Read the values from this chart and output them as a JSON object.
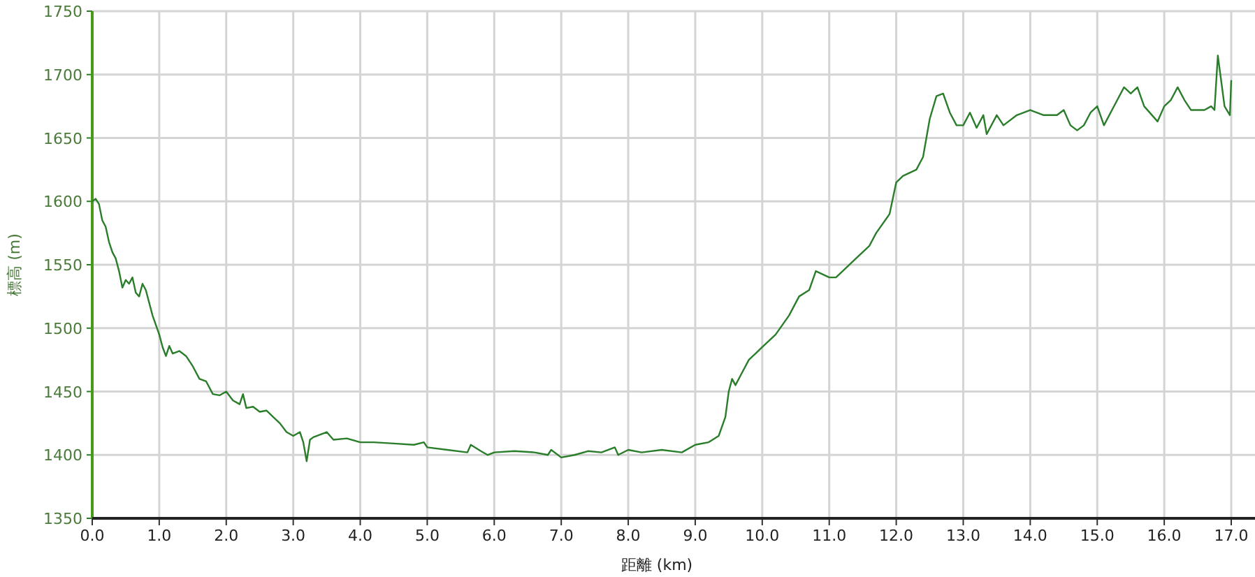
{
  "chart_data": {
    "type": "line",
    "xlabel": "距離 (km)",
    "ylabel": "標高 (m)",
    "color": "#2a7d2a",
    "grid": true,
    "xlim": [
      0,
      17.5
    ],
    "ylim": [
      1350,
      1750
    ],
    "xticks": [
      {
        "value": 0,
        "label": "0.0"
      },
      {
        "value": 1,
        "label": "1.0"
      },
      {
        "value": 2,
        "label": "2.0"
      },
      {
        "value": 3,
        "label": "3.0"
      },
      {
        "value": 4,
        "label": "4.0"
      },
      {
        "value": 5,
        "label": "5.0"
      },
      {
        "value": 6,
        "label": "6.0"
      },
      {
        "value": 7,
        "label": "7.0"
      },
      {
        "value": 8,
        "label": "8.0"
      },
      {
        "value": 9,
        "label": "9.0"
      },
      {
        "value": 10,
        "label": "10.0"
      },
      {
        "value": 11,
        "label": "11.0"
      },
      {
        "value": 12,
        "label": "12.0"
      },
      {
        "value": 13,
        "label": "13.0"
      },
      {
        "value": 14,
        "label": "14.0"
      },
      {
        "value": 15,
        "label": "15.0"
      },
      {
        "value": 16,
        "label": "16.0"
      },
      {
        "value": 17,
        "label": "17.0"
      }
    ],
    "yticks": [
      1350,
      1400,
      1450,
      1500,
      1550,
      1600,
      1650,
      1700,
      1750
    ],
    "x": [
      0,
      0.05,
      0.1,
      0.15,
      0.2,
      0.25,
      0.3,
      0.35,
      0.4,
      0.45,
      0.5,
      0.55,
      0.6,
      0.65,
      0.7,
      0.75,
      0.8,
      0.9,
      1.0,
      1.05,
      1.1,
      1.15,
      1.2,
      1.3,
      1.4,
      1.5,
      1.6,
      1.7,
      1.8,
      1.9,
      2.0,
      2.1,
      2.2,
      2.25,
      2.3,
      2.4,
      2.5,
      2.6,
      2.7,
      2.8,
      2.9,
      3.0,
      3.1,
      3.15,
      3.2,
      3.25,
      3.3,
      3.5,
      3.6,
      3.8,
      4.0,
      4.2,
      4.5,
      4.8,
      4.95,
      5.0,
      5.3,
      5.6,
      5.65,
      5.8,
      5.9,
      6.0,
      6.3,
      6.6,
      6.8,
      6.85,
      7.0,
      7.2,
      7.4,
      7.6,
      7.8,
      7.85,
      8.0,
      8.2,
      8.5,
      8.8,
      9.0,
      9.2,
      9.35,
      9.45,
      9.5,
      9.55,
      9.6,
      9.7,
      9.8,
      9.9,
      10.0,
      10.2,
      10.4,
      10.55,
      10.7,
      10.8,
      11.0,
      11.1,
      11.2,
      11.4,
      11.6,
      11.7,
      11.9,
      12.0,
      12.1,
      12.3,
      12.4,
      12.5,
      12.6,
      12.7,
      12.8,
      12.9,
      13.0,
      13.1,
      13.2,
      13.3,
      13.35,
      13.5,
      13.6,
      13.8,
      14.0,
      14.2,
      14.4,
      14.5,
      14.6,
      14.7,
      14.8,
      14.9,
      15.0,
      15.1,
      15.3,
      15.4,
      15.5,
      15.6,
      15.7,
      15.9,
      16.0,
      16.1,
      16.2,
      16.3,
      16.4,
      16.6,
      16.7,
      16.75,
      16.8,
      16.9,
      16.98,
      17.0
    ],
    "values": [
      1600,
      1602,
      1598,
      1585,
      1580,
      1568,
      1560,
      1555,
      1545,
      1532,
      1538,
      1535,
      1540,
      1528,
      1525,
      1535,
      1530,
      1510,
      1495,
      1485,
      1478,
      1486,
      1480,
      1482,
      1478,
      1470,
      1460,
      1458,
      1448,
      1447,
      1450,
      1443,
      1440,
      1448,
      1437,
      1438,
      1434,
      1435,
      1430,
      1425,
      1418,
      1415,
      1418,
      1410,
      1395,
      1412,
      1414,
      1418,
      1412,
      1413,
      1410,
      1410,
      1409,
      1408,
      1410,
      1406,
      1404,
      1402,
      1408,
      1403,
      1400,
      1402,
      1403,
      1402,
      1400,
      1404,
      1398,
      1400,
      1403,
      1402,
      1406,
      1400,
      1404,
      1402,
      1404,
      1402,
      1408,
      1410,
      1415,
      1430,
      1450,
      1460,
      1455,
      1465,
      1475,
      1480,
      1485,
      1495,
      1510,
      1525,
      1530,
      1545,
      1540,
      1540,
      1545,
      1555,
      1565,
      1575,
      1590,
      1615,
      1620,
      1625,
      1635,
      1665,
      1683,
      1685,
      1670,
      1660,
      1660,
      1670,
      1658,
      1668,
      1653,
      1668,
      1660,
      1668,
      1672,
      1668,
      1668,
      1672,
      1660,
      1656,
      1660,
      1670,
      1675,
      1660,
      1680,
      1690,
      1685,
      1690,
      1675,
      1663,
      1675,
      1680,
      1690,
      1680,
      1672,
      1672,
      1675,
      1672,
      1715,
      1675,
      1668,
      1695
    ]
  }
}
